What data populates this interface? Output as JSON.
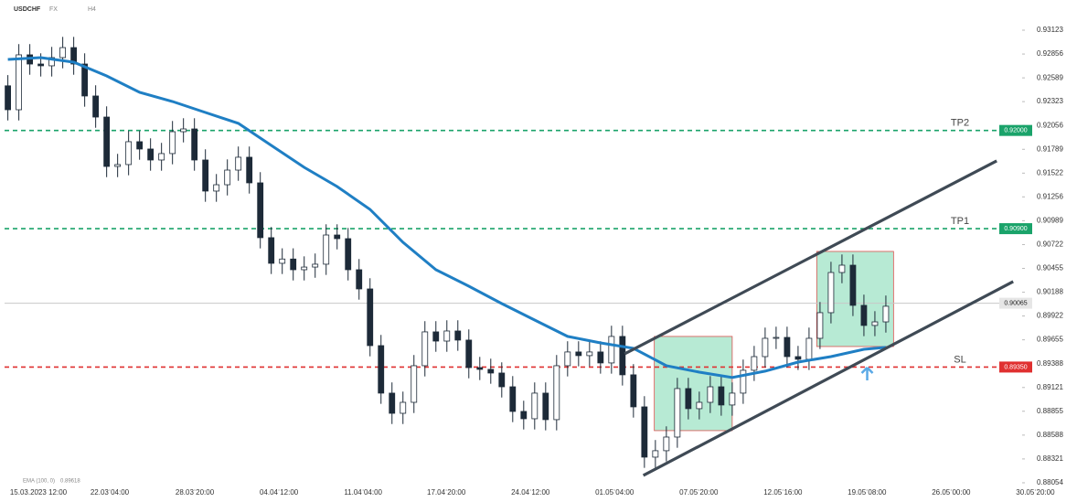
{
  "chart_data": {
    "type": "candlestick",
    "symbol": "USDCHF",
    "market": "FX",
    "timeframe": "H4",
    "color_up": "#ffffff",
    "color_down": "#1d2a38",
    "wick_color": "#1d2a38",
    "open": [
      0.925,
      0.92232,
      0.92847,
      0.92744,
      0.92724,
      0.92816,
      0.92928,
      0.92744,
      0.92386,
      0.9215,
      0.91597,
      0.91618,
      0.91874,
      0.91792,
      0.91669,
      0.91741,
      0.91986,
      0.92017,
      0.91669,
      0.91321,
      0.91392,
      0.91556,
      0.917,
      0.91413,
      0.90799,
      0.90512,
      0.9056,
      0.9044,
      0.9047,
      0.90502,
      0.90829,
      0.90788,
      0.9044,
      0.90225,
      0.8959,
      0.89058,
      0.88832,
      0.88955,
      0.89365,
      0.89744,
      0.89641,
      0.89754,
      0.89652,
      0.89344,
      0.89324,
      0.89283,
      0.89129,
      0.88853,
      0.88771,
      0.89058,
      0.88761,
      0.89365,
      0.89519,
      0.89478,
      0.89519,
      0.89396,
      0.89693,
      0.89263,
      0.88904,
      0.88341,
      0.88413,
      0.88566,
      0.89109,
      0.88884,
      0.88955,
      0.89129,
      0.88925,
      0.89058,
      0.89314,
      0.89467,
      0.89672,
      0.89682,
      0.89467,
      0.89437,
      0.89672,
      0.89959,
      0.90409,
      0.90491,
      0.90041,
      0.89816,
      0.89856
    ],
    "high": [
      0.9262,
      0.92967,
      0.92967,
      0.92864,
      0.92936,
      0.93048,
      0.93048,
      0.92864,
      0.92506,
      0.9227,
      0.91738,
      0.91994,
      0.91994,
      0.91912,
      0.91861,
      0.92106,
      0.92137,
      0.92137,
      0.91789,
      0.91512,
      0.91676,
      0.9182,
      0.9182,
      0.91533,
      0.90919,
      0.9068,
      0.9068,
      0.9059,
      0.90622,
      0.90949,
      0.90949,
      0.90908,
      0.9056,
      0.90345,
      0.8971,
      0.89178,
      0.89075,
      0.89485,
      0.89864,
      0.89864,
      0.89874,
      0.89874,
      0.89772,
      0.89464,
      0.89444,
      0.89403,
      0.89249,
      0.88973,
      0.89178,
      0.89178,
      0.89485,
      0.89639,
      0.89639,
      0.89639,
      0.89639,
      0.89813,
      0.89813,
      0.89383,
      0.89024,
      0.88533,
      0.88686,
      0.89229,
      0.89229,
      0.89075,
      0.89249,
      0.89249,
      0.89178,
      0.89434,
      0.89587,
      0.89792,
      0.89802,
      0.89802,
      0.89587,
      0.89792,
      0.90079,
      0.90529,
      0.90611,
      0.90611,
      0.90161,
      0.89976,
      0.90151
    ],
    "low": [
      0.92112,
      0.92112,
      0.92624,
      0.92604,
      0.92604,
      0.92696,
      0.92624,
      0.92266,
      0.9203,
      0.91477,
      0.91477,
      0.91498,
      0.91672,
      0.91549,
      0.91549,
      0.91621,
      0.91866,
      0.91549,
      0.91201,
      0.91201,
      0.91272,
      0.91436,
      0.91293,
      0.90679,
      0.90392,
      0.90392,
      0.9032,
      0.9032,
      0.9035,
      0.90382,
      0.90668,
      0.9032,
      0.90105,
      0.8947,
      0.88938,
      0.88712,
      0.88712,
      0.88835,
      0.89245,
      0.89521,
      0.89521,
      0.89532,
      0.89224,
      0.89204,
      0.89163,
      0.89009,
      0.88733,
      0.88651,
      0.88651,
      0.88641,
      0.88641,
      0.89245,
      0.89358,
      0.89358,
      0.89276,
      0.89276,
      0.89143,
      0.88784,
      0.88221,
      0.88221,
      0.88293,
      0.88446,
      0.88764,
      0.88764,
      0.88835,
      0.88805,
      0.88805,
      0.88938,
      0.89194,
      0.89347,
      0.89552,
      0.89347,
      0.89317,
      0.89317,
      0.89552,
      0.89839,
      0.90289,
      0.89921,
      0.89696,
      0.89696,
      0.89736
    ],
    "close": [
      0.92232,
      0.92847,
      0.92744,
      0.92724,
      0.92816,
      0.92928,
      0.92744,
      0.92386,
      0.9215,
      0.91597,
      0.91618,
      0.91874,
      0.91792,
      0.91669,
      0.91741,
      0.91986,
      0.92017,
      0.91669,
      0.91321,
      0.91392,
      0.91556,
      0.917,
      0.91413,
      0.90799,
      0.90512,
      0.9056,
      0.9044,
      0.9047,
      0.90502,
      0.90829,
      0.90788,
      0.9044,
      0.90225,
      0.8959,
      0.89058,
      0.88832,
      0.88955,
      0.89365,
      0.89744,
      0.89641,
      0.89754,
      0.89652,
      0.89344,
      0.89324,
      0.89283,
      0.89129,
      0.88853,
      0.88771,
      0.89058,
      0.88761,
      0.89365,
      0.89519,
      0.89478,
      0.89519,
      0.89396,
      0.89693,
      0.89263,
      0.88904,
      0.88341,
      0.88413,
      0.88566,
      0.89109,
      0.88884,
      0.88955,
      0.89129,
      0.88925,
      0.89058,
      0.89314,
      0.89467,
      0.89672,
      0.89682,
      0.89467,
      0.89437,
      0.89672,
      0.89959,
      0.90409,
      0.90491,
      0.90041,
      0.89816,
      0.89856,
      0.90031
    ],
    "ema": {
      "name": "EMA (100, 0)",
      "last": 0.89618,
      "color": "#1f7fc4",
      "x": [
        0,
        3,
        6,
        9,
        12,
        15,
        18,
        21,
        24,
        27,
        30,
        33,
        36,
        39,
        42,
        45,
        48,
        51,
        54,
        57,
        60,
        63,
        66,
        69,
        72,
        75,
        78,
        80
      ],
      "values": [
        0.92795,
        0.92816,
        0.92765,
        0.92611,
        0.92427,
        0.92324,
        0.92201,
        0.92079,
        0.91833,
        0.91587,
        0.91372,
        0.91116,
        0.90747,
        0.9044,
        0.90256,
        0.90061,
        0.89877,
        0.89693,
        0.89621,
        0.8956,
        0.89365,
        0.89293,
        0.89232,
        0.89304,
        0.89406,
        0.89467,
        0.89549,
        0.8957
      ]
    },
    "last_price": 0.90065,
    "levels": [
      {
        "name": "TP2",
        "price": {
          "value": 0.92,
          "label": "0.92000"
        },
        "color": "#1aa36a"
      },
      {
        "name": "TP1",
        "price": {
          "value": 0.909,
          "label": "0.90900"
        },
        "color": "#1aa36a"
      },
      {
        "name": "SL",
        "price": {
          "value": 0.8935,
          "label": "0.89350"
        },
        "color": "#e03030"
      }
    ],
    "trendlines": [
      {
        "x": [
          56.2,
          90.1
        ],
        "values": [
          0.89498,
          0.91659
        ]
      },
      {
        "x": [
          57.9,
          91.6
        ],
        "values": [
          0.88136,
          0.90307
        ]
      }
    ],
    "trendline_color": "#3f4a55",
    "zones": [
      {
        "x": [
          58.9,
          66.0
        ],
        "values": [
          0.88638,
          0.89693
        ]
      },
      {
        "x": [
          73.7,
          80.7
        ],
        "values": [
          0.8958,
          0.90645
        ]
      }
    ],
    "zone_color": "#9fe3c6",
    "arrow": {
      "x": 78.3,
      "value": 0.89283,
      "color": "#5aa9e6"
    },
    "xlim": [
      -0.3,
      94
    ],
    "ylim": [
      0.87982,
      0.93461
    ],
    "xticks": [
      {
        "value": 2.78,
        "label": "15.03.2023  12:00"
      },
      {
        "value": 9.28,
        "label": "22.03  04:00"
      },
      {
        "value": 17.03,
        "label": "28.03  20:00"
      },
      {
        "value": 24.7,
        "label": "04.04  12:00"
      },
      {
        "value": 32.37,
        "label": "11.04  04:00"
      },
      {
        "value": 39.95,
        "label": "17.04  20:00"
      },
      {
        "value": 47.62,
        "label": "24.04  12:00"
      },
      {
        "value": 55.28,
        "label": "01.05  04:00"
      },
      {
        "value": 62.95,
        "label": "07.05  20:00"
      },
      {
        "value": 70.62,
        "label": "12.05  16:00"
      },
      {
        "value": 78.28,
        "label": "19.05  08:00"
      },
      {
        "value": 85.95,
        "label": "26.05  00:00"
      },
      {
        "value": 93.62,
        "label": "30.05  20:00"
      }
    ],
    "yticks": [
      0.93123,
      0.92856,
      0.92589,
      0.92323,
      0.92056,
      0.91789,
      0.91522,
      0.91256,
      0.90989,
      0.90722,
      0.90455,
      0.90188,
      0.89922,
      0.89655,
      0.89388,
      0.89121,
      0.88855,
      0.88588,
      0.88321,
      0.88054
    ]
  }
}
